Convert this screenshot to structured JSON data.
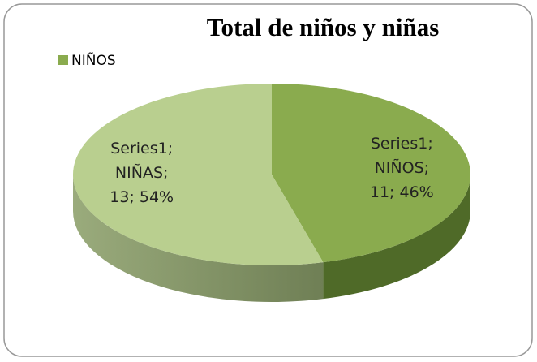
{
  "chart_data": {
    "type": "pie",
    "title": "Total de niños y niñas",
    "series_name": "Series1",
    "categories": [
      "NIÑOS",
      "NIÑAS"
    ],
    "values": [
      11,
      13
    ],
    "value_labels": [
      "Series1; NIÑOS; 11; 46%",
      "Series1; NIÑAS; 13; 54%"
    ],
    "colors": [
      "#8aab4e",
      "#b9cf8f"
    ],
    "legend": "top-left"
  }
}
